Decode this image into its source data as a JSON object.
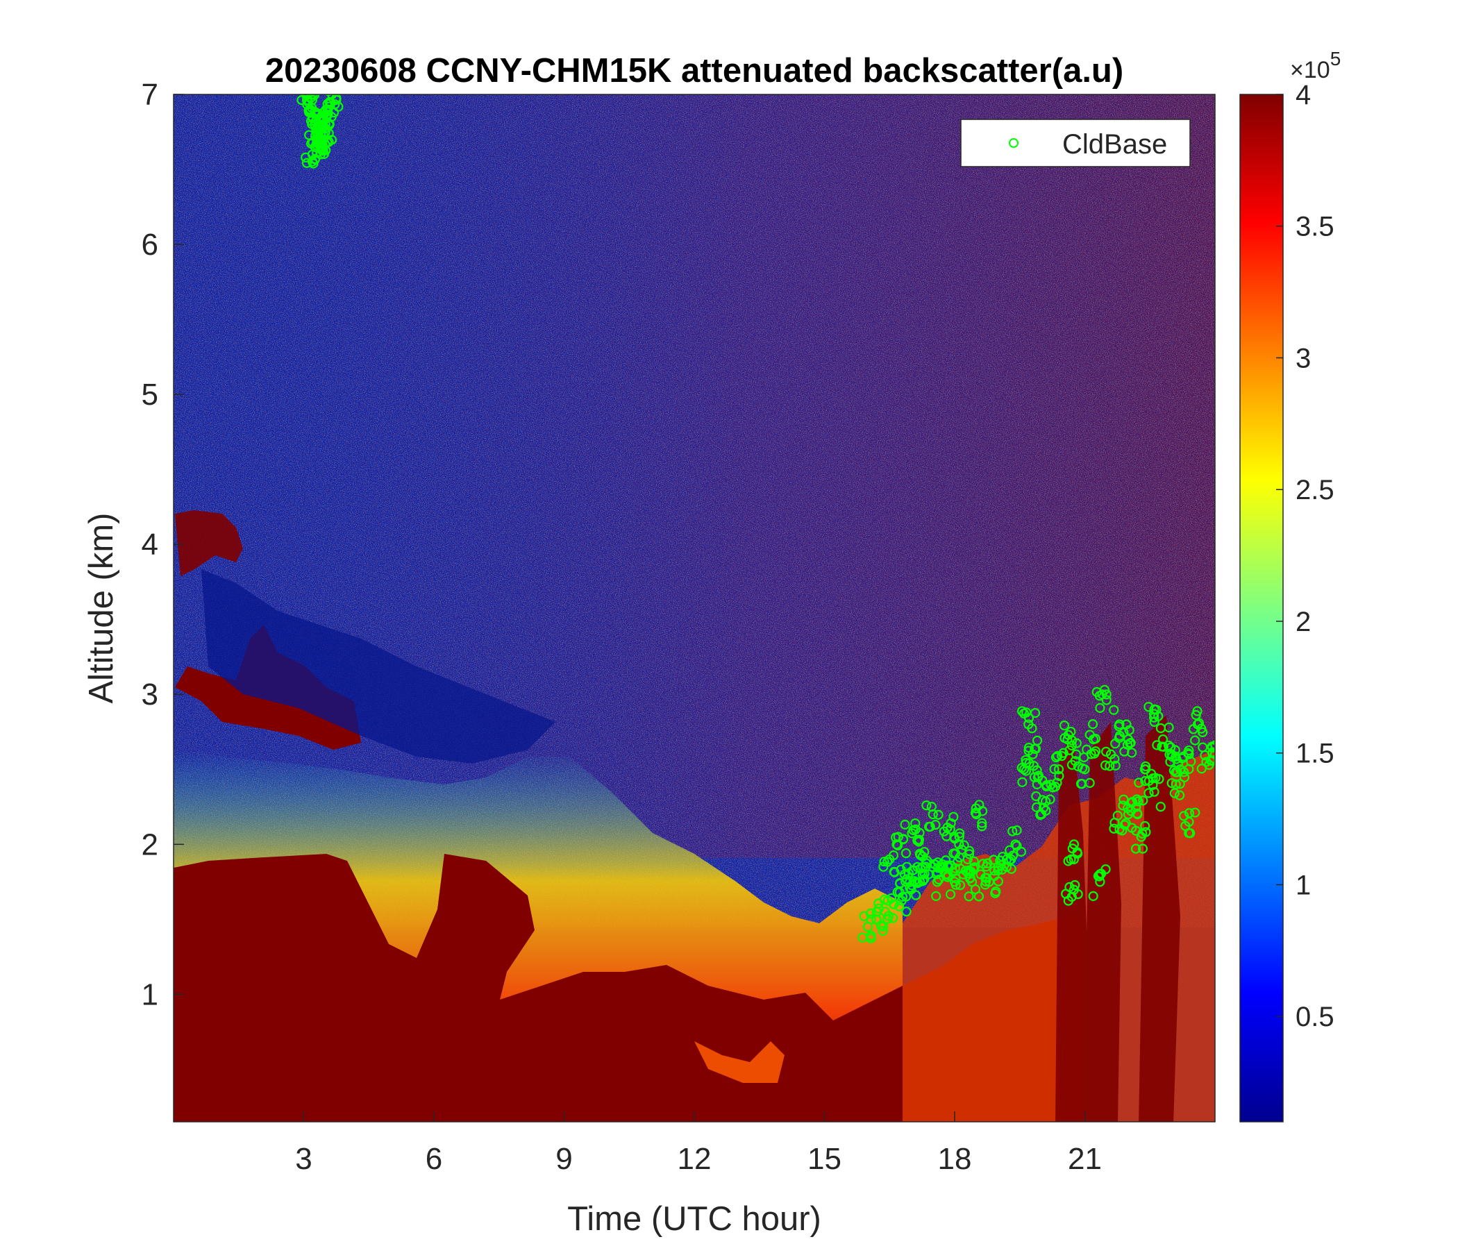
{
  "chart_data": {
    "type": "heatmap",
    "title": "20230608 CCNY-CHM15K attenuated backscatter(a.u)",
    "xlabel": "Time (UTC hour)",
    "ylabel": "Altitude (km)",
    "xlim": [
      0,
      24
    ],
    "ylim": [
      0.15,
      7
    ],
    "xticks": [
      3,
      6,
      9,
      12,
      15,
      18,
      21
    ],
    "yticks": [
      1,
      2,
      3,
      4,
      5,
      6,
      7
    ],
    "colorbar": {
      "colormap": "jet",
      "range": [
        10000,
        400000
      ],
      "ticks": [
        0.5,
        1,
        1.5,
        2,
        2.5,
        3,
        3.5,
        4
      ],
      "tick_labels": [
        "0.5",
        "1",
        "1.5",
        "2",
        "2.5",
        "3",
        "3.5",
        "4"
      ],
      "exponent_label": "×10",
      "exponent_power": "5"
    },
    "legend": {
      "placement": "top-right",
      "entries": [
        "CldBase"
      ]
    },
    "colors": {
      "cldbase": "#00ff00",
      "background_low": "#0a1e9c",
      "background_high": "#800000"
    },
    "cloud_base": {
      "name": "CldBase",
      "x": [
        3.05,
        3.1,
        3.15,
        3.2,
        3.25,
        3.3,
        3.35,
        3.4,
        3.45,
        3.5,
        3.55,
        3.6,
        3.65,
        3.2,
        3.3,
        3.4,
        3.5,
        16.0,
        16.2,
        16.4,
        16.6,
        16.8,
        17.0,
        17.2,
        17.4,
        17.6,
        17.8,
        18.0,
        18.2,
        18.4,
        18.6,
        18.8,
        19.0,
        19.2,
        19.4,
        16.5,
        16.7,
        16.9,
        17.1,
        17.3,
        17.5,
        17.7,
        17.9,
        18.1,
        18.3,
        18.5,
        19.6,
        19.7,
        19.8,
        19.9,
        20.0,
        20.2,
        20.4,
        20.6,
        20.8,
        21.0,
        21.2,
        21.4,
        21.6,
        21.8,
        22.0,
        22.2,
        22.4,
        22.6,
        22.8,
        23.0,
        23.2,
        23.4,
        23.6,
        23.8,
        24.0,
        20.7,
        20.75,
        21.35,
        21.8,
        22.0,
        22.3,
        22.6,
        23.1,
        23.4
      ],
      "y": [
        7.0,
        6.95,
        6.9,
        6.85,
        6.8,
        6.75,
        6.7,
        6.65,
        6.7,
        6.8,
        6.9,
        6.95,
        7.0,
        6.6,
        6.7,
        6.85,
        6.75,
        1.45,
        1.5,
        1.55,
        1.6,
        1.65,
        1.7,
        1.75,
        1.8,
        1.75,
        1.8,
        1.75,
        1.8,
        1.75,
        1.8,
        1.75,
        1.85,
        1.9,
        2.0,
        1.9,
        2.05,
        1.85,
        2.1,
        1.95,
        2.2,
        1.85,
        2.1,
        2.0,
        1.9,
        2.2,
        2.5,
        2.8,
        2.6,
        2.4,
        2.2,
        2.3,
        2.5,
        2.7,
        2.6,
        2.5,
        2.7,
        3.0,
        2.6,
        2.8,
        2.7,
        2.3,
        2.5,
        2.9,
        2.7,
        2.6,
        2.5,
        2.6,
        2.8,
        2.55,
        2.6,
        1.65,
        1.9,
        1.75,
        2.1,
        2.2,
        2.05,
        2.35,
        2.4,
        2.15
      ]
    }
  }
}
